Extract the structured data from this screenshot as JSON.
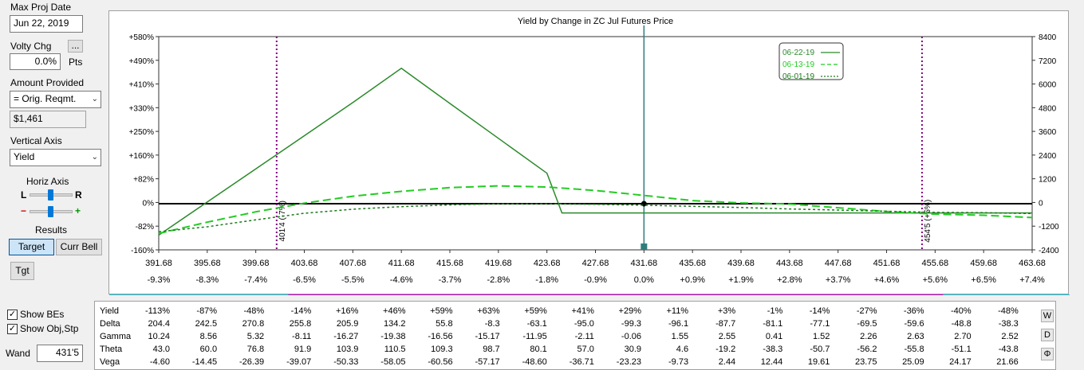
{
  "left_panel": {
    "max_proj_date_label": "Max Proj Date",
    "max_proj_date_value": "Jun 22, 2019",
    "volty_chg_label": "Volty Chg",
    "volty_chg_button": "...",
    "volty_chg_value": "0.0%",
    "volty_chg_unit": "Pts",
    "amount_provided_label": "Amount Provided",
    "amount_provided_value": "= Orig. Reqmt.",
    "amount_value": "$1,461",
    "vertical_axis_label": "Vertical Axis",
    "vertical_axis_value": "Yield",
    "horiz_axis_label": "Horiz Axis",
    "slider1_left": "L",
    "slider1_right": "R",
    "slider2_left": "−",
    "slider2_right": "+",
    "results_label": "Results",
    "target_button": "Target",
    "curr_bell_button": "Curr Bell",
    "tgt_button": "Tgt",
    "show_bes_label": "Show BEs",
    "show_obj_stp_label": "Show Obj,Stp",
    "wand_label": "Wand",
    "wand_value": "431'5"
  },
  "chart_data": {
    "type": "line",
    "title": "Yield by Change in ZC Jul Futures Price",
    "x_ticks": [
      "391.68",
      "395.68",
      "399.68",
      "403.68",
      "407.68",
      "411.68",
      "415.68",
      "419.68",
      "423.68",
      "427.68",
      "431.68",
      "435.68",
      "439.68",
      "443.68",
      "447.68",
      "451.68",
      "455.68",
      "459.68",
      "463.68"
    ],
    "x_pct_ticks": [
      "-9.3%",
      "-8.3%",
      "-7.4%",
      "-6.5%",
      "-5.5%",
      "-4.6%",
      "-3.7%",
      "-2.8%",
      "-1.8%",
      "-0.9%",
      "0.0%",
      "+0.9%",
      "+1.9%",
      "+2.8%",
      "+3.7%",
      "+4.6%",
      "+5.6%",
      "+6.5%",
      "+7.4%"
    ],
    "xlim": [
      391.68,
      463.68
    ],
    "y_left_ticks": [
      "+580%",
      "+490%",
      "+410%",
      "+330%",
      "+250%",
      "+160%",
      "+82%",
      "0%",
      "-82%",
      "-160%"
    ],
    "y_right_ticks": [
      "8400",
      "7200",
      "6000",
      "4800",
      "3600",
      "2400",
      "1200",
      "0",
      "-1200",
      "-2400"
    ],
    "ylim": [
      -160,
      580
    ],
    "legend_position": "top-right",
    "series": [
      {
        "name": "06-22-19",
        "style": "solid",
        "color": "#2a8a2a",
        "x": [
          391.68,
          395.68,
          399.68,
          403.68,
          407.68,
          411.68,
          415.68,
          419.68,
          423.68,
          424.92,
          431.68,
          439.68,
          447.68,
          455.68,
          463.68
        ],
        "y": [
          -109,
          6,
          121,
          236,
          351,
          470,
          348,
          227,
          106,
          -32,
          -32,
          -32,
          -32,
          -32,
          -32
        ]
      },
      {
        "name": "06-13-19",
        "style": "dashed",
        "color": "#22cc22",
        "x": [
          391.68,
          395.68,
          399.68,
          403.68,
          407.68,
          411.68,
          415.68,
          419.68,
          423.68,
          427.68,
          431.68,
          435.68,
          439.68,
          443.68,
          447.68,
          451.68,
          455.68,
          459.68,
          463.68
        ],
        "y": [
          -103,
          -64,
          -28,
          2,
          26,
          43,
          56,
          62,
          58,
          46,
          29,
          11,
          3,
          -1,
          -14,
          -27,
          -36,
          -40,
          -48
        ]
      },
      {
        "name": "06-01-19",
        "style": "dotted",
        "color": "#1a7a1a",
        "x": [
          391.68,
          395.68,
          399.68,
          403.68,
          407.68,
          411.68,
          415.68,
          419.68,
          423.68,
          427.68,
          431.68,
          435.68,
          439.68,
          443.68,
          447.68,
          451.68,
          455.68,
          459.68,
          463.68
        ],
        "y": [
          -97,
          -80,
          -56,
          -33,
          -19,
          -10,
          -4,
          0,
          0,
          -2,
          -5,
          -9,
          -13,
          -18,
          -22,
          -26,
          -30,
          -31,
          -34
        ]
      }
    ],
    "vertical_markers": [
      {
        "x": 401.4,
        "label": "401'4 (-7%)"
      },
      {
        "x": 454.6,
        "label": "454'5 (+5%)"
      }
    ],
    "current_price_x": 431.68
  },
  "greeks": {
    "rows": [
      {
        "label": "Yield",
        "values": [
          "-113%",
          "-87%",
          "-48%",
          "-14%",
          "+16%",
          "+46%",
          "+59%",
          "+63%",
          "+59%",
          "+41%",
          "+29%",
          "+11%",
          "+3%",
          "-1%",
          "-14%",
          "-27%",
          "-36%",
          "-40%",
          "-48%"
        ]
      },
      {
        "label": "Delta",
        "values": [
          "204.4",
          "242.5",
          "270.8",
          "255.8",
          "205.9",
          "134.2",
          "55.8",
          "-8.3",
          "-63.1",
          "-95.0",
          "-99.3",
          "-96.1",
          "-87.7",
          "-81.1",
          "-77.1",
          "-69.5",
          "-59.6",
          "-48.8",
          "-38.3"
        ]
      },
      {
        "label": "Gamma",
        "values": [
          "10.24",
          "8.56",
          "5.32",
          "-8.11",
          "-16.27",
          "-19.38",
          "-16.56",
          "-15.17",
          "-11.95",
          "-2.11",
          "-0.06",
          "1.55",
          "2.55",
          "0.41",
          "1.52",
          "2.26",
          "2.63",
          "2.70",
          "2.52"
        ]
      },
      {
        "label": "Theta",
        "values": [
          "43.0",
          "60.0",
          "76.8",
          "91.9",
          "103.9",
          "110.5",
          "109.3",
          "98.7",
          "80.1",
          "57.0",
          "30.9",
          "4.6",
          "-19.2",
          "-38.3",
          "-50.7",
          "-56.2",
          "-55.8",
          "-51.1",
          "-43.8"
        ]
      },
      {
        "label": "Vega",
        "values": [
          "-4.60",
          "-14.45",
          "-26.39",
          "-39.07",
          "-50.33",
          "-58.05",
          "-60.56",
          "-57.17",
          "-48.60",
          "-36.71",
          "-23.23",
          "-9.73",
          "2.44",
          "12.44",
          "19.61",
          "23.75",
          "25.09",
          "24.17",
          "21.66"
        ]
      }
    ],
    "side_buttons": [
      "W",
      "D",
      "Φ"
    ]
  }
}
